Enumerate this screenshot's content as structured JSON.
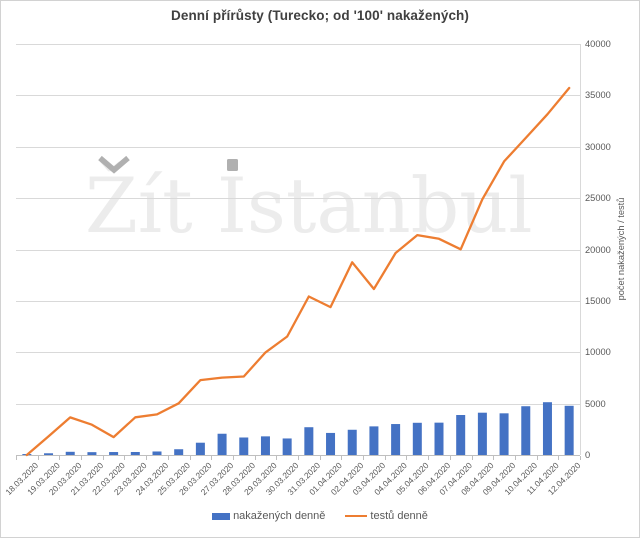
{
  "chart_data": {
    "type": "bar",
    "subtype": "combo-bar-line",
    "title": "Denní přírůsty (Turecko; od '100' nakažených)",
    "watermark": "Žít İstanbul",
    "categories": [
      "18.03.2020",
      "19.03.2020",
      "20.03.2020",
      "21.03.2020",
      "22.03.2020",
      "23.03.2020",
      "24.03.2020",
      "25.03.2020",
      "26.03.2020",
      "27.03.2020",
      "28.03.2020",
      "29.03.2020",
      "30.03.2020",
      "31.03.2020",
      "01.04.2020",
      "02.04.2020",
      "03.04.2020",
      "04.04.2020",
      "05.04.2020",
      "06.04.2020",
      "07.04.2020",
      "08.04.2020",
      "09.04.2020",
      "10.04.2020",
      "11.04.2020",
      "12.04.2020"
    ],
    "series": [
      {
        "name": "nakažených denně",
        "type": "bar",
        "color": "#4472C4",
        "values": [
          93,
          168,
          311,
          277,
          289,
          293,
          343,
          561,
          1196,
          2069,
          1704,
          1815,
          1610,
          2704,
          2148,
          2456,
          2786,
          3013,
          3135,
          3148,
          3892,
          4117,
          4056,
          4747,
          5138,
          4789
        ]
      },
      {
        "name": "testů denně",
        "type": "line",
        "color": "#ED7D31",
        "values": [
          0,
          1815,
          3656,
          2953,
          1738,
          3672,
          3952,
          5035,
          7286,
          7533,
          7641,
          9982,
          11535,
          15422,
          14396,
          18757,
          16160,
          19664,
          21400,
          21043,
          20023,
          24900,
          28578,
          30864,
          33170,
          35720
        ]
      }
    ],
    "xlabel": "",
    "ylabel": "počet nakažených / testů",
    "ylim": [
      0,
      40000
    ],
    "ytick_labels": [
      "0",
      "5000",
      "10000",
      "15000",
      "20000",
      "25000",
      "30000",
      "35000",
      "40000"
    ],
    "grid": "horizontal",
    "legend_position": "bottom"
  },
  "colors": {
    "bar": "#4472C4",
    "line": "#ED7D31",
    "title_text": "#404040",
    "axis_text": "#595959",
    "gridline": "#D9D9D9",
    "axis_line": "#BFBFBF",
    "watermark_text": "#ECECEC",
    "watermark_accent": "#B0B0B0"
  }
}
